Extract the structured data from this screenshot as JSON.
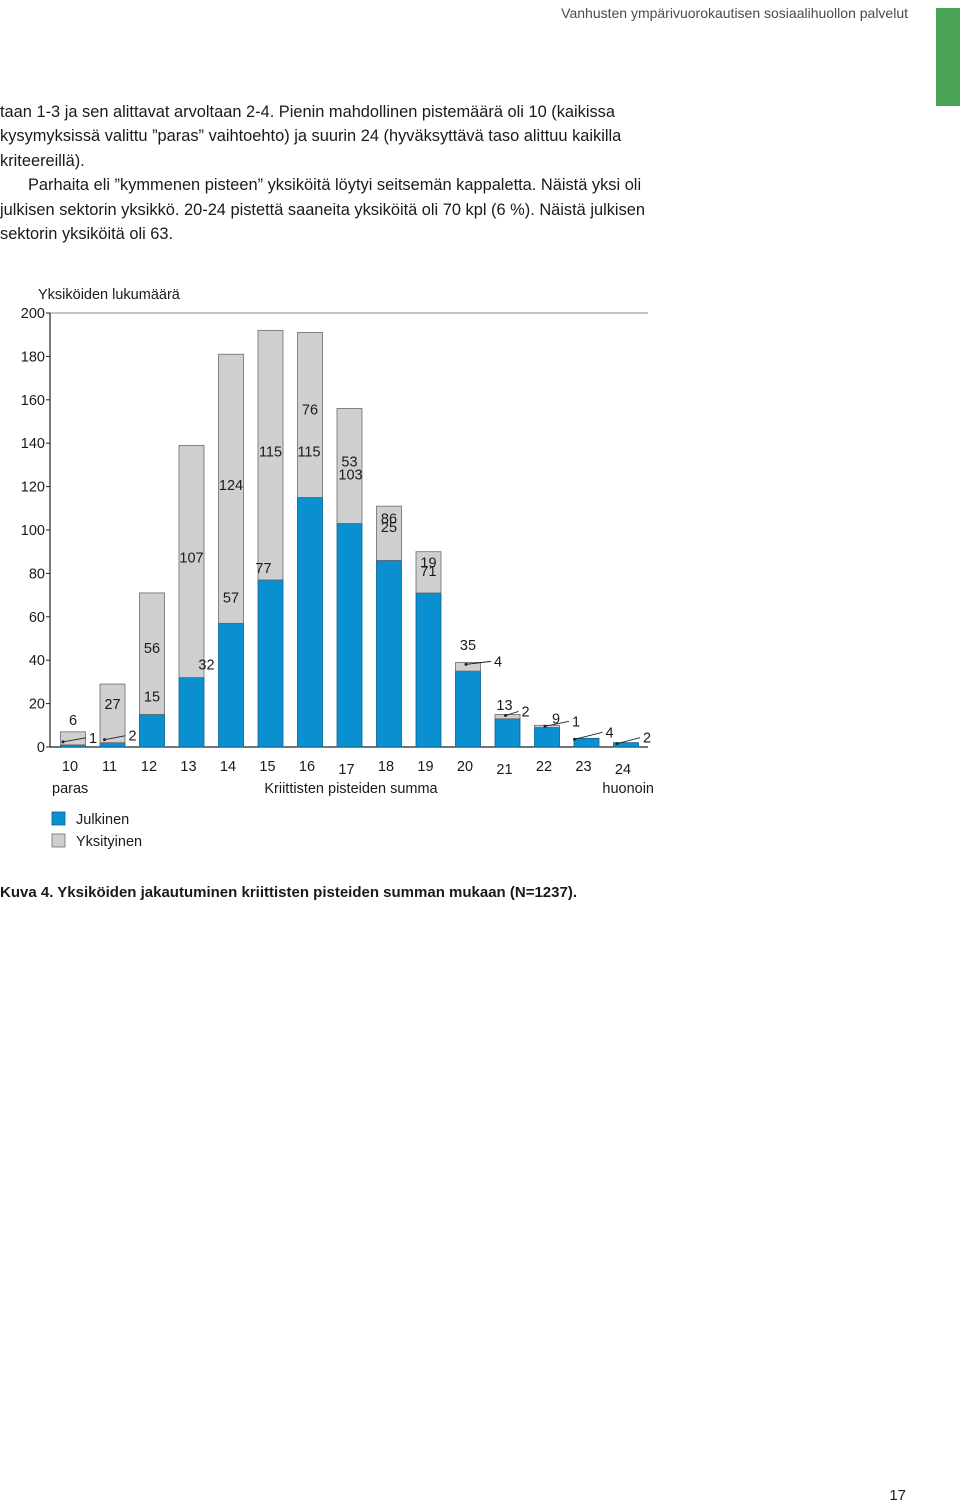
{
  "header": {
    "running_title": "Vanhusten ympärivuorokautisen sosiaalihuollon palvelut"
  },
  "body_text": {
    "p1": "taan 1-3 ja sen alittavat arvoltaan 2-4. Pienin mahdollinen pistemäärä oli 10 (kaikissa kysymyksissä valittu ”paras” vaihtoehto) ja suurin 24 (hyväksyttävä taso alittuu kaikilla kriteereillä).",
    "p2": "Parhaita eli ”kymmenen pisteen” yksiköitä löytyi seitsemän kappaletta. Näistä yksi oli julkisen sektorin yksikkö. 20-24 pistettä saaneita yksiköitä oli 70 kpl (6 %). Näistä julkisen sektorin yksiköitä oli 63."
  },
  "chart_data": {
    "type": "bar",
    "stacked": true,
    "ylabel": "Yksiköiden lukumäärä",
    "xlabel": "Kriittisten pisteiden summa",
    "x_start_label": "paras",
    "x_end_label": "huonoin",
    "ylim": [
      0,
      200
    ],
    "yticks": [
      0,
      20,
      40,
      60,
      80,
      100,
      120,
      140,
      160,
      180,
      200
    ],
    "categories": [
      "10",
      "11",
      "12",
      "13",
      "14",
      "15",
      "16",
      "17",
      "18",
      "19",
      "20",
      "21",
      "22",
      "23",
      "24"
    ],
    "series": [
      {
        "name": "Julkinen",
        "color": "#0a8fd0",
        "values": [
          1,
          2,
          15,
          32,
          57,
          77,
          115,
          103,
          86,
          71,
          35,
          13,
          9,
          4,
          2
        ]
      },
      {
        "name": "Yksityinen",
        "color": "#cfcfcf",
        "values": [
          6,
          27,
          56,
          107,
          124,
          115,
          76,
          53,
          25,
          19,
          4,
          2,
          1,
          0,
          0
        ]
      }
    ],
    "legend_position": "bottom-left",
    "grid": false
  },
  "caption": "Kuva 4. Yksiköiden jakautuminen kriittisten pisteiden summan mukaan (N=1237).",
  "page_number": "17"
}
